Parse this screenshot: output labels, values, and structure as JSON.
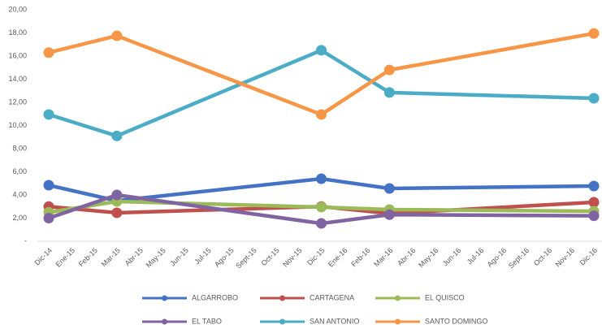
{
  "chart_data": {
    "type": "line",
    "categories": [
      "Dic-14",
      "Ene-15",
      "Feb-15",
      "Mar-15",
      "Abr-15",
      "May-15",
      "Jun-15",
      "Jul-15",
      "Ago-15",
      "Sept-15",
      "Oct-15",
      "Nov-15",
      "Dic-15",
      "Ene-16",
      "Feb-16",
      "Mar-16",
      "Abr-16",
      "May-16",
      "Jun-16",
      "Jul-16",
      "Ago-16",
      "Sept-16",
      "Oct-16",
      "Nov-16",
      "Dic-16"
    ],
    "span_gaps": true,
    "grid": false,
    "legend": "bottom",
    "ylim": [
      0,
      20
    ],
    "yticks": [
      {
        "value": 0,
        "label": "-"
      },
      {
        "value": 2,
        "label": "2,00"
      },
      {
        "value": 4,
        "label": "4,00"
      },
      {
        "value": 6,
        "label": "6,00"
      },
      {
        "value": 8,
        "label": "8,00"
      },
      {
        "value": 10,
        "label": "10,00"
      },
      {
        "value": 12,
        "label": "12,00"
      },
      {
        "value": 14,
        "label": "14,00"
      },
      {
        "value": 16,
        "label": "16,00"
      },
      {
        "value": 18,
        "label": "18,00"
      },
      {
        "value": 20,
        "label": "20,00"
      }
    ],
    "series": [
      {
        "name": "ALGARROBO",
        "color": "#4472c4",
        "values": [
          4.84,
          null,
          null,
          3.5,
          null,
          null,
          null,
          null,
          null,
          null,
          null,
          null,
          5.4,
          null,
          null,
          4.56,
          null,
          null,
          null,
          null,
          null,
          null,
          null,
          null,
          4.77
        ]
      },
      {
        "name": "CARTAGENA",
        "color": "#c0504d",
        "values": [
          3.0,
          null,
          null,
          2.46,
          null,
          null,
          null,
          null,
          null,
          null,
          null,
          null,
          3.0,
          null,
          null,
          2.4,
          null,
          null,
          null,
          null,
          null,
          null,
          null,
          null,
          3.37
        ]
      },
      {
        "name": "EL QUISCO",
        "color": "#9bbb59",
        "values": [
          2.5,
          null,
          null,
          3.44,
          null,
          null,
          null,
          null,
          null,
          null,
          null,
          null,
          2.95,
          null,
          null,
          2.74,
          null,
          null,
          null,
          null,
          null,
          null,
          null,
          null,
          2.6
        ]
      },
      {
        "name": "EL TABO",
        "color": "#8064a2",
        "values": [
          2.0,
          null,
          null,
          4.0,
          null,
          null,
          null,
          null,
          null,
          null,
          null,
          null,
          1.54,
          null,
          null,
          2.3,
          null,
          null,
          null,
          null,
          null,
          null,
          null,
          null,
          2.2
        ]
      },
      {
        "name": "SAN ANTONIO",
        "color": "#4bacc6",
        "values": [
          10.95,
          null,
          null,
          9.1,
          null,
          null,
          null,
          null,
          null,
          null,
          null,
          null,
          16.5,
          null,
          null,
          12.85,
          null,
          null,
          null,
          null,
          null,
          null,
          null,
          null,
          12.35
        ]
      },
      {
        "name": "SANTO DOMINGO",
        "color": "#f79646",
        "values": [
          16.3,
          null,
          null,
          17.75,
          null,
          null,
          null,
          null,
          null,
          null,
          null,
          null,
          10.95,
          null,
          null,
          14.8,
          null,
          null,
          null,
          null,
          null,
          null,
          null,
          null,
          17.95
        ]
      }
    ]
  }
}
